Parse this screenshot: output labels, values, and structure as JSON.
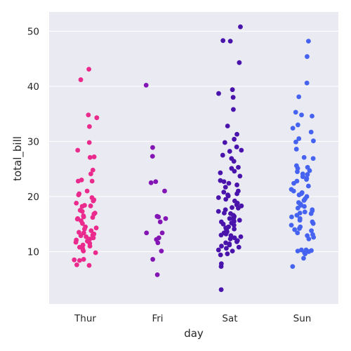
{
  "chart_data": {
    "type": "scatter",
    "style": "strip plot with jitter",
    "title": "",
    "xlabel": "day",
    "ylabel": "total_bill",
    "categories": [
      "Thur",
      "Fri",
      "Sat",
      "Sun"
    ],
    "ylim": [
      0.5,
      53.5
    ],
    "yticks": [
      10,
      20,
      30,
      40,
      50
    ],
    "grid": "horizontal",
    "background_color": "#EAEAF2",
    "gridline_color": "#FFFFFF",
    "series": [
      {
        "category": "Thur",
        "color": "#EA2A8C",
        "values": [
          43.1,
          41.2,
          34.8,
          34.3,
          32.7,
          29.8,
          28.4,
          27.2,
          27.1,
          24.8,
          24.1,
          23.0,
          22.8,
          22.8,
          21.0,
          20.5,
          20.3,
          19.8,
          19.4,
          19.2,
          18.8,
          18.4,
          18.3,
          18.2,
          17.5,
          17.3,
          17.0,
          16.8,
          16.5,
          16.3,
          16.2,
          16.0,
          15.9,
          15.6,
          15.1,
          14.5,
          14.3,
          14.1,
          13.8,
          13.5,
          13.4,
          13.2,
          13.0,
          12.9,
          12.7,
          12.5,
          12.3,
          12.1,
          11.9,
          11.7,
          11.5,
          11.2,
          11.0,
          10.8,
          10.6,
          10.3,
          10.1,
          9.8,
          8.6,
          8.5,
          8.4,
          7.6,
          7.5
        ]
      },
      {
        "category": "Fri",
        "color": "#8415B5",
        "values": [
          40.2,
          28.9,
          27.3,
          22.7,
          22.5,
          21.0,
          16.4,
          16.3,
          16.0,
          15.4,
          13.4,
          13.4,
          12.5,
          12.2,
          11.6,
          10.1,
          8.6,
          5.8
        ]
      },
      {
        "category": "Sat",
        "color": "#4A14AC",
        "values": [
          50.8,
          48.3,
          48.2,
          44.3,
          39.4,
          38.7,
          38.0,
          35.8,
          32.8,
          31.3,
          30.4,
          29.8,
          29.0,
          28.4,
          28.2,
          27.5,
          26.9,
          26.4,
          25.3,
          25.1,
          24.6,
          24.3,
          23.7,
          22.9,
          22.7,
          22.4,
          22.1,
          21.7,
          21.0,
          20.8,
          20.5,
          20.3,
          20.1,
          19.8,
          19.5,
          19.2,
          18.8,
          18.5,
          18.3,
          18.0,
          17.9,
          17.6,
          17.3,
          17.0,
          16.9,
          16.6,
          16.4,
          16.2,
          16.0,
          15.9,
          15.7,
          15.5,
          15.4,
          15.2,
          15.0,
          14.8,
          14.5,
          14.3,
          14.1,
          13.9,
          13.6,
          13.4,
          13.2,
          13.0,
          12.9,
          12.7,
          12.5,
          12.3,
          12.0,
          11.8,
          11.6,
          11.4,
          11.2,
          11.0,
          10.8,
          10.6,
          10.3,
          10.1,
          9.6,
          9.4,
          7.8,
          7.3,
          3.1
        ]
      },
      {
        "category": "Sun",
        "color": "#4563F0",
        "values": [
          48.2,
          45.4,
          40.6,
          38.1,
          35.3,
          34.8,
          34.6,
          33.0,
          32.4,
          31.7,
          30.5,
          30.1,
          29.9,
          28.6,
          27.1,
          26.9,
          25.6,
          25.3,
          25.1,
          24.7,
          24.5,
          24.1,
          24.0,
          23.6,
          23.3,
          23.1,
          22.8,
          22.4,
          21.9,
          21.3,
          21.0,
          20.7,
          20.5,
          20.3,
          20.0,
          19.6,
          19.3,
          18.9,
          18.6,
          18.4,
          18.2,
          17.9,
          17.6,
          17.4,
          17.2,
          17.0,
          16.9,
          16.6,
          16.3,
          16.0,
          15.7,
          15.4,
          15.1,
          14.8,
          14.5,
          14.2,
          14.0,
          13.8,
          13.4,
          13.1,
          12.9,
          12.6,
          12.3,
          10.3,
          10.3,
          10.2,
          10.1,
          10.0,
          9.8,
          9.6,
          8.8,
          7.3
        ]
      }
    ]
  }
}
